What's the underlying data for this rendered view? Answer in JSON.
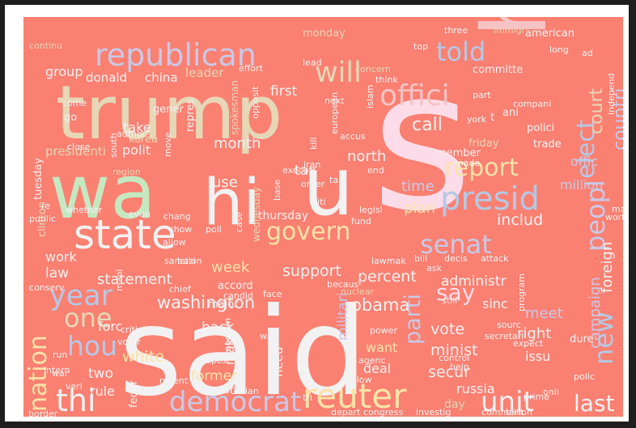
{
  "background_color": "#FA8072",
  "words": [
    {
      "text": "said",
      "color": "#f2f2f2"
    },
    {
      "text": "s",
      "color": "#fcdce8"
    },
    {
      "text": "trump",
      "color": "#e6d7b6"
    },
    {
      "text": "ha",
      "color": "#f6c3c5"
    },
    {
      "text": "wa",
      "color": "#c5e8c1"
    },
    {
      "text": "hi",
      "color": "#f2f2f2"
    },
    {
      "text": "u",
      "color": "#f2f2f2"
    },
    {
      "text": "presid",
      "color": "#b4c9e6"
    },
    {
      "text": "state",
      "color": "#f2f2f2"
    },
    {
      "text": "republican",
      "color": "#c9c9e6"
    },
    {
      "text": "will",
      "color": "#e6d7b6"
    },
    {
      "text": "told",
      "color": "#b4c9e6"
    },
    {
      "text": "offici",
      "color": "#f6c3c5"
    },
    {
      "text": "govern",
      "color": "#fce3a8"
    },
    {
      "text": "senat",
      "color": "#c9c9e6"
    },
    {
      "text": "reuter",
      "color": "#fce3a8"
    },
    {
      "text": "democrat",
      "color": "#c9c9e6"
    },
    {
      "text": "unit",
      "color": "#f2f2f2"
    },
    {
      "text": "thi",
      "color": "#f2f2f2"
    },
    {
      "text": "year",
      "color": "#b4c9e6"
    },
    {
      "text": "hou",
      "color": "#b4c9e6"
    },
    {
      "text": "one",
      "color": "#e6d7b6"
    },
    {
      "text": "nation",
      "color": "#fce3a8"
    },
    {
      "text": "report",
      "color": "#fce3a8"
    },
    {
      "text": "elect",
      "color": "#b4c9e6"
    },
    {
      "text": "countri",
      "color": "#c9c9e6"
    },
    {
      "text": "peopl",
      "color": "#c9c9e6"
    },
    {
      "text": "new",
      "color": "#b4c9e6"
    },
    {
      "text": "last",
      "color": "#f2f2f2"
    },
    {
      "text": "say",
      "color": "#fcdce8"
    },
    {
      "text": "parti",
      "color": "#c9c9e6"
    },
    {
      "text": "court",
      "color": "#e6d7b6"
    },
    {
      "text": "washington",
      "color": "#f2f2f2"
    },
    {
      "text": "obama",
      "color": "#f2f2f2"
    },
    {
      "text": "support",
      "color": "#f2f2f2"
    },
    {
      "text": "percent",
      "color": "#f2f2f2"
    },
    {
      "text": "administr",
      "color": "#f2f2f2"
    },
    {
      "text": "includ",
      "color": "#f2f2f2"
    },
    {
      "text": "plan",
      "color": "#fce3a8"
    },
    {
      "text": "time",
      "color": "#c9c9e6"
    },
    {
      "text": "call",
      "color": "#f2f2f2"
    },
    {
      "text": "north",
      "color": "#f2f2f2"
    },
    {
      "text": "tax",
      "color": "#f2f2f2"
    },
    {
      "text": "use",
      "color": "#f2f2f2"
    },
    {
      "text": "month",
      "color": "#f2f2f2"
    },
    {
      "text": "week",
      "color": "#fce3a8"
    },
    {
      "text": "statement",
      "color": "#f2f2f2"
    },
    {
      "text": "work",
      "color": "#f2f2f2"
    },
    {
      "text": "law",
      "color": "#f2f2f2"
    },
    {
      "text": "forc",
      "color": "#f2f2f2"
    },
    {
      "text": "back",
      "color": "#f2f2f2"
    },
    {
      "text": "white",
      "color": "#fce3a8"
    },
    {
      "text": "two",
      "color": "#f2f2f2"
    },
    {
      "text": "rule",
      "color": "#f2f2f2"
    },
    {
      "text": "former",
      "color": "#fce3a8"
    },
    {
      "text": "vote",
      "color": "#f2f2f2"
    },
    {
      "text": "minist",
      "color": "#f2f2f2"
    },
    {
      "text": "secur",
      "color": "#f2f2f2"
    },
    {
      "text": "sinc",
      "color": "#f2f2f2"
    },
    {
      "text": "meet",
      "color": "#c9c9e6"
    },
    {
      "text": "right",
      "color": "#f2f2f2"
    },
    {
      "text": "issu",
      "color": "#f2f2f2"
    },
    {
      "text": "deal",
      "color": "#f2f2f2"
    },
    {
      "text": "want",
      "color": "#fce3a8"
    },
    {
      "text": "russia",
      "color": "#f2f2f2"
    },
    {
      "text": "campaign",
      "color": "#c9c9e6"
    },
    {
      "text": "foreign",
      "color": "#f2f2f2"
    },
    {
      "text": "offic",
      "color": "#c9c9e6"
    },
    {
      "text": "million",
      "color": "#c9c9e6"
    },
    {
      "text": "first",
      "color": "#f2f2f2"
    },
    {
      "text": "donald",
      "color": "#f2f2f2"
    },
    {
      "text": "china",
      "color": "#f2f2f2"
    },
    {
      "text": "leader",
      "color": "#e6d7b6"
    },
    {
      "text": "group",
      "color": "#f2f2f2"
    },
    {
      "text": "polit",
      "color": "#f2f2f2"
    },
    {
      "text": "take",
      "color": "#f2f2f2"
    },
    {
      "text": "presidenti",
      "color": "#e6d7b6"
    },
    {
      "text": "tuesday",
      "color": "#f2f2f2"
    },
    {
      "text": "militari",
      "color": "#c9c9e6"
    },
    {
      "text": "make",
      "color": "#f2f2f2"
    },
    {
      "text": "need",
      "color": "#f2f2f2"
    },
    {
      "text": "thursday",
      "color": "#f2f2f2"
    },
    {
      "text": "ani",
      "color": "#f2f2f2"
    },
    {
      "text": "polici",
      "color": "#f2f2f2"
    },
    {
      "text": "trade",
      "color": "#f2f2f2"
    },
    {
      "text": "member",
      "color": "#f2f2f2"
    },
    {
      "text": "friday",
      "color": "#e6d7b6"
    },
    {
      "text": "american",
      "color": "#f2f2f2"
    },
    {
      "text": "committe",
      "color": "#f2f2f2"
    },
    {
      "text": "accord",
      "color": "#f2f2f2"
    },
    {
      "text": "major",
      "color": "#f2f2f2"
    },
    {
      "text": "befor",
      "color": "#f2f2f2"
    },
    {
      "text": "feder",
      "color": "#f2f2f2"
    },
    {
      "text": "day",
      "color": "#e6d7b6"
    },
    {
      "text": "dure",
      "color": "#f2f2f2"
    },
    {
      "text": "clinton",
      "color": "#e6d7b6"
    },
    {
      "text": "repres",
      "color": "#f2f2f2"
    },
    {
      "text": "gener",
      "color": "#f2f2f2"
    },
    {
      "text": "korea",
      "color": "#e6d7b6"
    },
    {
      "text": "monday",
      "color": "#e6d7b6"
    },
    {
      "text": "come",
      "color": "#f2f2f2"
    },
    {
      "text": "go",
      "color": "#f2f2f2"
    },
    {
      "text": "intern",
      "color": "#f2f2f2"
    },
    {
      "text": "wednesday",
      "color": "#e6d7b6"
    },
    {
      "text": "spokesman",
      "color": "#e6d7b6"
    },
    {
      "text": "execut",
      "color": "#f2f2f2"
    },
    {
      "text": "iran",
      "color": "#f2f2f2"
    },
    {
      "text": "chang",
      "color": "#f2f2f2"
    },
    {
      "text": "show",
      "color": "#f2f2f2"
    },
    {
      "text": "poll",
      "color": "#f2f2f2"
    },
    {
      "text": "fund",
      "color": "#f2f2f2"
    },
    {
      "text": "legisl",
      "color": "#f2f2f2"
    },
    {
      "text": "attack",
      "color": "#f2f2f2"
    },
    {
      "text": "decis",
      "color": "#f2f2f2"
    },
    {
      "text": "bill",
      "color": "#f2f2f2"
    },
    {
      "text": "ask",
      "color": "#f2f2f2"
    },
    {
      "text": "region",
      "color": "#e6d7b6"
    },
    {
      "text": "allow",
      "color": "#f2f2f2"
    },
    {
      "text": "sanction",
      "color": "#f2f2f2"
    },
    {
      "text": "author",
      "color": "#f2f2f2"
    },
    {
      "text": "close",
      "color": "#f2f2f2"
    },
    {
      "text": "south",
      "color": "#f2f2f2"
    },
    {
      "text": "continu",
      "color": "#e6d7b6"
    },
    {
      "text": "lead",
      "color": "#f2f2f2"
    },
    {
      "text": "effort",
      "color": "#f2f2f2"
    },
    {
      "text": "concern",
      "color": "#e6d7b6"
    },
    {
      "text": "think",
      "color": "#f2f2f2"
    },
    {
      "text": "three",
      "color": "#f2f2f2"
    },
    {
      "text": "immigr",
      "color": "#e6d7b6"
    },
    {
      "text": "long",
      "color": "#f2f2f2"
    },
    {
      "text": "ad",
      "color": "#f2f2f2"
    },
    {
      "text": "top",
      "color": "#f2f2f2"
    },
    {
      "text": "part",
      "color": "#f2f2f2"
    },
    {
      "text": "compani",
      "color": "#f2f2f2"
    },
    {
      "text": "york",
      "color": "#f2f2f2"
    },
    {
      "text": "t",
      "color": "#f2f2f2"
    },
    {
      "text": "next",
      "color": "#f2f2f2"
    },
    {
      "text": "islam",
      "color": "#f2f2f2"
    },
    {
      "text": "european",
      "color": "#f2f2f2"
    },
    {
      "text": "kill",
      "color": "#f2f2f2"
    },
    {
      "text": "accus",
      "color": "#f2f2f2"
    },
    {
      "text": "end",
      "color": "#f2f2f2"
    },
    {
      "text": "made",
      "color": "#f2f2f2"
    },
    {
      "text": "talk",
      "color": "#f2f2f2"
    },
    {
      "text": "case",
      "color": "#f2f2f2"
    },
    {
      "text": "citi",
      "color": "#f2f2f2"
    },
    {
      "text": "order",
      "color": "#f2f2f2"
    },
    {
      "text": "base",
      "color": "#f2f2f2"
    },
    {
      "text": "becaus",
      "color": "#f2f2f2"
    },
    {
      "text": "lawmak",
      "color": "#f2f2f2"
    },
    {
      "text": "program",
      "color": "#f2f2f2"
    },
    {
      "text": "world",
      "color": "#f2f2f2"
    },
    {
      "text": "may",
      "color": "#f2f2f2"
    },
    {
      "text": "busi",
      "color": "#f2f2f2"
    },
    {
      "text": "candid",
      "color": "#f2f2f2"
    },
    {
      "text": "chief",
      "color": "#f2f2f2"
    },
    {
      "text": "face",
      "color": "#f2f2f2"
    },
    {
      "text": "nuclear",
      "color": "#e6d7b6"
    },
    {
      "text": "still",
      "color": "#f2f2f2"
    },
    {
      "text": "sourc",
      "color": "#f2f2f2"
    },
    {
      "text": "power",
      "color": "#f2f2f2"
    },
    {
      "text": "agenc",
      "color": "#f2f2f2"
    },
    {
      "text": "expect",
      "color": "#f2f2f2"
    },
    {
      "text": "secretari",
      "color": "#f2f2f2"
    },
    {
      "text": "control",
      "color": "#f2f2f2"
    },
    {
      "text": "help",
      "color": "#f2f2f2"
    },
    {
      "text": "polic",
      "color": "#f2f2f2"
    },
    {
      "text": "onli",
      "color": "#f2f2f2"
    },
    {
      "text": "prime",
      "color": "#f2f2f2"
    },
    {
      "text": "billion",
      "color": "#f2f2f2"
    },
    {
      "text": "comment",
      "color": "#f2f2f2"
    },
    {
      "text": "investig",
      "color": "#f2f2f2"
    },
    {
      "text": "congress",
      "color": "#f2f2f2"
    },
    {
      "text": "depart",
      "color": "#f2f2f2"
    },
    {
      "text": "tri",
      "color": "#f2f2f2"
    },
    {
      "text": "follow",
      "color": "#f2f2f2"
    },
    {
      "text": "russian",
      "color": "#f2f2f2"
    },
    {
      "text": "recent",
      "color": "#f2f2f2"
    },
    {
      "text": "propos",
      "color": "#f2f2f2"
    },
    {
      "text": "critic",
      "color": "#f2f2f2"
    },
    {
      "text": "voter",
      "color": "#f2f2f2"
    },
    {
      "text": "way",
      "color": "#f2f2f2"
    },
    {
      "text": "medium",
      "color": "#f2f2f2"
    },
    {
      "text": "war",
      "color": "#f2f2f2"
    },
    {
      "text": "run",
      "color": "#f2f2f2"
    },
    {
      "text": "mani",
      "color": "#f2f2f2"
    },
    {
      "text": "conserv",
      "color": "#f2f2f2"
    },
    {
      "text": "public",
      "color": "#f2f2f2"
    },
    {
      "text": "re",
      "color": "#f2f2f2"
    },
    {
      "text": "whether",
      "color": "#f2f2f2"
    },
    {
      "text": "even",
      "color": "#f2f2f2"
    },
    {
      "text": "border",
      "color": "#f2f2f2"
    },
    {
      "text": "veri",
      "color": "#f2f2f2"
    },
    {
      "text": "independ",
      "color": "#f2f2f2"
    },
    {
      "text": "opposit",
      "color": "#f2f2f2"
    },
    {
      "text": "move",
      "color": "#f2f2f2"
    }
  ]
}
